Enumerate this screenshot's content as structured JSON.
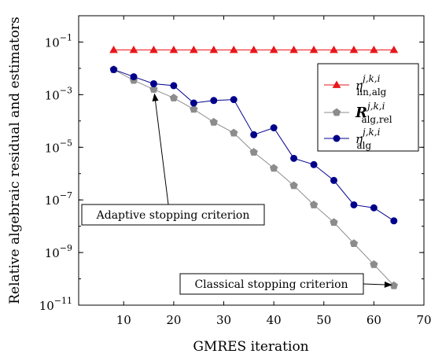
{
  "chart_data": {
    "type": "line",
    "xlabel": "GMRES iteration",
    "ylabel": "Relative algebraic residual and estimators",
    "xlim": [
      1,
      70
    ],
    "ylim_exponent": [
      -11,
      0
    ],
    "yscale": "log",
    "x_ticks": [
      10,
      20,
      30,
      40,
      50,
      60,
      70
    ],
    "y_ticks": [
      -11,
      -9,
      -7,
      -5,
      -3,
      -1
    ],
    "legend_position": "top-right",
    "series": [
      {
        "name": "η^{j,k,i}_{lin,alg}",
        "color": "#e8161b",
        "marker": "triangle",
        "x": [
          8,
          12,
          16,
          20,
          24,
          28,
          32,
          36,
          40,
          44,
          48,
          52,
          56,
          60,
          64
        ],
        "y": [
          0.05,
          0.05,
          0.05,
          0.05,
          0.05,
          0.05,
          0.05,
          0.05,
          0.05,
          0.05,
          0.05,
          0.05,
          0.05,
          0.05,
          0.05
        ]
      },
      {
        "name": "R^{j,k,i}_{alg,rel}",
        "color": "#8c8c8c",
        "marker": "pentagon",
        "x": [
          8,
          12,
          16,
          20,
          24,
          28,
          32,
          36,
          40,
          44,
          48,
          52,
          56,
          60,
          64
        ],
        "y": [
          0.009,
          0.0035,
          0.0016,
          0.00075,
          0.00028,
          9e-05,
          3.5e-05,
          6.5e-06,
          1.6e-06,
          3.5e-07,
          6.5e-08,
          1.4e-08,
          2.2e-09,
          3.5e-10,
          5.5e-11
        ]
      },
      {
        "name": "η^{j,k,i}_{alg}",
        "color": "#00008b",
        "marker": "circle",
        "x": [
          8,
          12,
          16,
          20,
          24,
          28,
          32,
          36,
          40,
          44,
          48,
          52,
          56,
          60,
          64
        ],
        "y": [
          0.009,
          0.0048,
          0.0026,
          0.0022,
          0.00048,
          0.0006,
          0.00065,
          3e-05,
          5.5e-05,
          3.8e-06,
          2.2e-06,
          5.5e-07,
          6.5e-08,
          5e-08,
          1.6e-08
        ]
      }
    ],
    "annotations": [
      {
        "text": "Adaptive stopping criterion",
        "target_x": 16,
        "target_y": 0.0016
      },
      {
        "text": "Classical stopping criterion",
        "target_x": 64,
        "target_y": 5.5e-11
      }
    ]
  }
}
